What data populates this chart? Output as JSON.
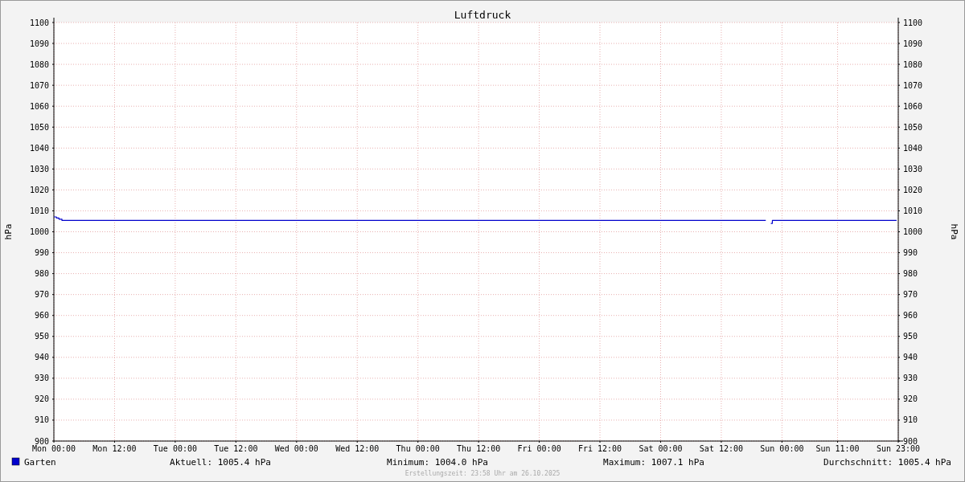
{
  "chart_data": {
    "type": "line",
    "title": "Luftdruck",
    "ylabel": "hPa",
    "y2label": "hPa",
    "xlim": [
      "2025-10-20T00:00",
      "2025-10-26T23:00"
    ],
    "xticks": [
      {
        "value": "2025-10-20T00:00",
        "label": "Mon 00:00"
      },
      {
        "value": "2025-10-20T12:00",
        "label": "Mon 12:00"
      },
      {
        "value": "2025-10-21T00:00",
        "label": "Tue 00:00"
      },
      {
        "value": "2025-10-21T12:00",
        "label": "Tue 12:00"
      },
      {
        "value": "2025-10-22T00:00",
        "label": "Wed 00:00"
      },
      {
        "value": "2025-10-22T12:00",
        "label": "Wed 12:00"
      },
      {
        "value": "2025-10-23T00:00",
        "label": "Thu 00:00"
      },
      {
        "value": "2025-10-23T12:00",
        "label": "Thu 12:00"
      },
      {
        "value": "2025-10-24T00:00",
        "label": "Fri 00:00"
      },
      {
        "value": "2025-10-24T12:00",
        "label": "Fri 12:00"
      },
      {
        "value": "2025-10-25T00:00",
        "label": "Sat 00:00"
      },
      {
        "value": "2025-10-25T12:00",
        "label": "Sat 12:00"
      },
      {
        "value": "2025-10-26T00:00",
        "label": "Sun 00:00"
      },
      {
        "value": "2025-10-26T11:00",
        "label": "Sun 11:00"
      },
      {
        "value": "2025-10-26T23:00",
        "label": "Sun 23:00"
      }
    ],
    "ylim": [
      900,
      1100
    ],
    "yticks": [
      900,
      910,
      920,
      930,
      940,
      950,
      960,
      970,
      980,
      990,
      1000,
      1010,
      1020,
      1030,
      1040,
      1050,
      1060,
      1070,
      1080,
      1090,
      1100
    ],
    "y2lim": [
      900,
      1100
    ],
    "y2ticks": [
      900,
      910,
      920,
      930,
      940,
      950,
      960,
      970,
      980,
      990,
      1000,
      1010,
      1020,
      1030,
      1040,
      1050,
      1060,
      1070,
      1080,
      1090,
      1100
    ],
    "grid": true,
    "legend": "bottom left",
    "series": [
      {
        "name": "Garten",
        "color": "#0000cc",
        "x": [
          "2025-10-20T00:00",
          "2025-10-20T00:30",
          "2025-10-20T01:00",
          "2025-10-20T01:36",
          "2025-10-25T20:48",
          "2025-10-25T20:54",
          "2025-10-25T21:48",
          "2025-10-25T22:06",
          "2025-10-26T22:40"
        ],
        "values": [
          1007.1,
          1006.6,
          1006.0,
          1005.4,
          1005.4,
          null,
          1004.0,
          1005.4,
          1005.4
        ]
      }
    ],
    "annotations": [
      "Aktuell: 1005.4 hPa",
      "Minimum: 1004.0 hPa",
      "Maximum: 1007.1 hPa",
      "Durchschnitt: 1005.4 hPa",
      "Erstellungszeit: 23:58 Uhr am 26.10.2025"
    ]
  }
}
